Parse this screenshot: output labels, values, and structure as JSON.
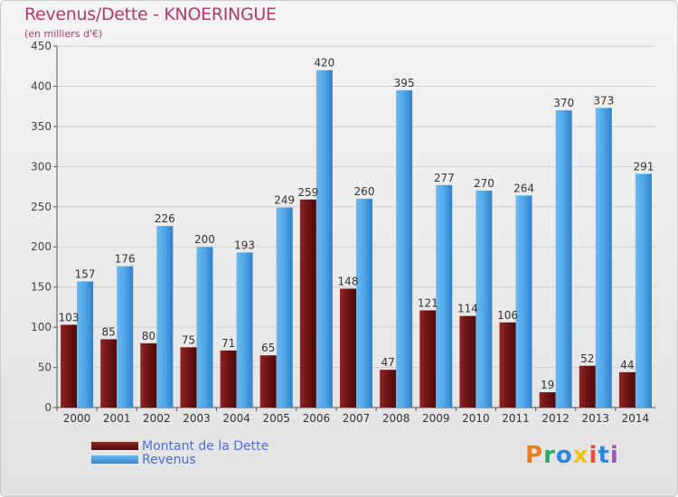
{
  "title": "Revenus/Dette - KNOERINGUE",
  "subtitle": "(en milliers d'€)",
  "logo": {
    "text": "Proxiti",
    "colors": [
      "#e67e22",
      "#27ae60",
      "#2e86de",
      "#f1c40f",
      "#e74c3c",
      "#2e86de",
      "#9b59b6"
    ]
  },
  "chart_data": {
    "type": "bar",
    "title": "Revenus/Dette - KNOERINGUE",
    "ylabel": "(en milliers d'€)",
    "ylim": [
      0,
      450
    ],
    "yticks": [
      0,
      50,
      100,
      150,
      200,
      250,
      300,
      350,
      400,
      450
    ],
    "grid": true,
    "legend_position": "bottom-left",
    "categories": [
      "2000",
      "2001",
      "2002",
      "2003",
      "2004",
      "2005",
      "2006",
      "2007",
      "2008",
      "2009",
      "2010",
      "2011",
      "2012",
      "2013",
      "2014"
    ],
    "series": [
      {
        "name": "Montant de la Dette",
        "color": "#7a1a1a",
        "values": [
          103,
          85,
          80,
          75,
          71,
          65,
          259,
          148,
          47,
          121,
          114,
          106,
          19,
          52,
          44
        ],
        "labels": [
          "103",
          "85",
          "80",
          "75",
          "71",
          "65",
          "259",
          "148",
          "47",
          "121",
          "114",
          "106",
          "19",
          "52",
          "44"
        ]
      },
      {
        "name": "Revenus",
        "color": "#4fa6e8",
        "values": [
          157,
          176,
          226,
          200,
          193,
          249,
          420,
          260,
          395,
          277,
          270,
          264,
          370,
          373,
          291
        ],
        "labels": [
          "157",
          "176",
          "226",
          "200",
          "193",
          "249",
          "420",
          "260",
          "395",
          "277",
          "270",
          "264",
          "370",
          "373",
          "291"
        ]
      }
    ]
  }
}
